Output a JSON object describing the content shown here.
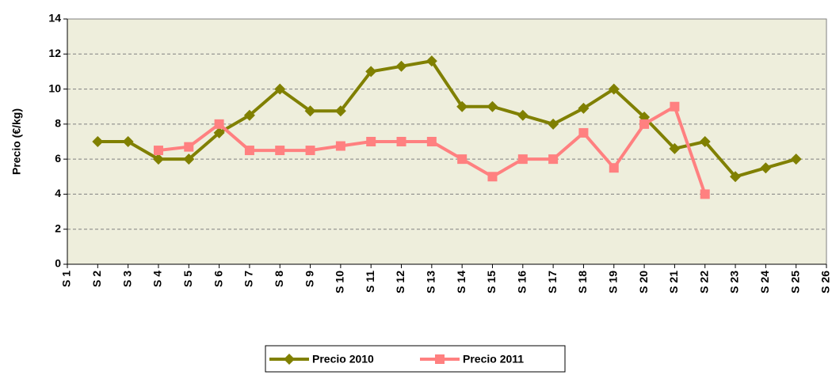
{
  "chart_data": {
    "type": "line",
    "y_label": "Precio (€/kg)",
    "categories": [
      "S 1",
      "S 2",
      "S 3",
      "S 4",
      "S 5",
      "S 6",
      "S 7",
      "S 8",
      "S 9",
      "S 10",
      "S 11",
      "S 12",
      "S 13",
      "S 14",
      "S 15",
      "S 16",
      "S 17",
      "S 18",
      "S 19",
      "S 20",
      "S 21",
      "S 22",
      "S 23",
      "S 24",
      "S 25",
      "S 26"
    ],
    "series": [
      {
        "name": "Precio 2010",
        "color": "#808000",
        "marker": "diamond",
        "values": [
          null,
          7,
          7,
          6,
          6,
          7.5,
          8.5,
          10,
          8.75,
          8.75,
          11,
          11.3,
          11.6,
          9,
          9,
          8.5,
          8,
          8.9,
          10,
          8.4,
          6.6,
          7,
          5,
          5.5,
          6,
          null
        ]
      },
      {
        "name": "Precio 2011",
        "color": "#ff8080",
        "marker": "square",
        "values": [
          null,
          null,
          null,
          6.5,
          6.7,
          8,
          6.5,
          6.5,
          6.5,
          6.75,
          7,
          7,
          7,
          6,
          5,
          6,
          6,
          7.5,
          5.5,
          8,
          9,
          4,
          null,
          null,
          null,
          null
        ]
      }
    ],
    "ylim": [
      0,
      14
    ],
    "yticks": [
      0,
      2,
      4,
      6,
      8,
      10,
      12,
      14
    ],
    "grid": true,
    "legend": "bottom"
  }
}
